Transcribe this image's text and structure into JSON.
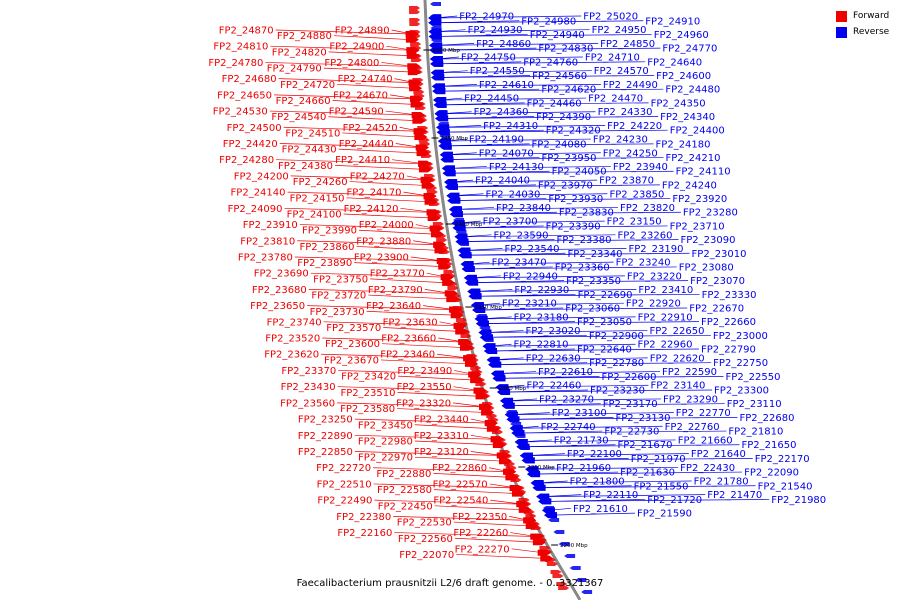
{
  "legend": {
    "forward": {
      "label": "Forward",
      "color": "#ee0000"
    },
    "reverse": {
      "label": "Reverse",
      "color": "#0000ee"
    }
  },
  "caption": "Faecalibacterium prausnitzii L2/6 draft genome. - 0..3321367",
  "scale_labels": [
    "2500 Mbp",
    "2450 Mbp",
    "2400 Mbp",
    "2350 Mbp",
    "2300 Mbp",
    "2250 Mbp",
    "2200 Mbp"
  ],
  "forward_genes": [
    "FP2_24890",
    "FP2_24880",
    "FP2_24870",
    "FP2_24900",
    "FP2_24820",
    "FP2_24810",
    "FP2_24800",
    "FP2_24790",
    "FP2_24780",
    "FP2_24740",
    "FP2_24720",
    "FP2_24680",
    "FP2_24670",
    "FP2_24660",
    "FP2_24650",
    "FP2_24590",
    "FP2_24540",
    "FP2_24530",
    "FP2_24520",
    "FP2_24510",
    "FP2_24500",
    "FP2_24440",
    "FP2_24430",
    "FP2_24420",
    "FP2_24410",
    "FP2_24380",
    "FP2_24280",
    "FP2_24270",
    "FP2_24260",
    "FP2_24200",
    "FP2_24170",
    "FP2_24150",
    "FP2_24140",
    "FP2_24120",
    "FP2_24100",
    "FP2_24090",
    "FP2_24000",
    "FP2_23990",
    "FP2_23910",
    "FP2_23880",
    "FP2_23860",
    "FP2_23810",
    "FP2_23900",
    "FP2_23890",
    "FP2_23780",
    "FP2_23770",
    "FP2_23750",
    "FP2_23690",
    "FP2_23790",
    "FP2_23720",
    "FP2_23680",
    "FP2_23640",
    "FP2_23730",
    "FP2_23650",
    "FP2_23630",
    "FP2_23570",
    "FP2_23740",
    "FP2_23660",
    "FP2_23600",
    "FP2_23520",
    "FP2_23460",
    "FP2_23670",
    "FP2_23620",
    "FP2_23490",
    "FP2_23420",
    "FP2_23370",
    "FP2_23550",
    "FP2_23510",
    "FP2_23430",
    "FP2_23320",
    "FP2_23580",
    "FP2_23560",
    "FP2_23440",
    "FP2_23450",
    "FP2_23250",
    "FP2_23310",
    "FP2_22980",
    "FP2_22890",
    "FP2_23120",
    "FP2_22970",
    "FP2_22850",
    "FP2_22860",
    "FP2_22880",
    "FP2_22720",
    "FP2_22570",
    "FP2_22580",
    "FP2_22510",
    "FP2_22540",
    "FP2_22450",
    "FP2_22490",
    "FP2_22350",
    "FP2_22530",
    "FP2_22380",
    "FP2_22260",
    "FP2_22560",
    "FP2_22160",
    "FP2_22270",
    "FP2_22070"
  ],
  "reverse_genes": [
    "FP2_24970",
    "FP2_24980",
    "FP2_25020",
    "FP2_24910",
    "FP2_24930",
    "FP2_24940",
    "FP2_24950",
    "FP2_24960",
    "FP2_24860",
    "FP2_24830",
    "FP2_24850",
    "FP2_24770",
    "FP2_24750",
    "FP2_24760",
    "FP2_24710",
    "FP2_24640",
    "FP2_24550",
    "FP2_24560",
    "FP2_24570",
    "FP2_24600",
    "FP2_24610",
    "FP2_24620",
    "FP2_24490",
    "FP2_24480",
    "FP2_24450",
    "FP2_24460",
    "FP2_24470",
    "FP2_24350",
    "FP2_24360",
    "FP2_24390",
    "FP2_24330",
    "FP2_24340",
    "FP2_24310",
    "FP2_24320",
    "FP2_24220",
    "FP2_24400",
    "FP2_24190",
    "FP2_24080",
    "FP2_24230",
    "FP2_24180",
    "FP2_24070",
    "FP2_23950",
    "FP2_24250",
    "FP2_24210",
    "FP2_24130",
    "FP2_24050",
    "FP2_23940",
    "FP2_24110",
    "FP2_24040",
    "FP2_23970",
    "FP2_23870",
    "FP2_24240",
    "FP2_24030",
    "FP2_23930",
    "FP2_23850",
    "FP2_23920",
    "FP2_23840",
    "FP2_23830",
    "FP2_23820",
    "FP2_23280",
    "FP2_23700",
    "FP2_23390",
    "FP2_23150",
    "FP2_23710",
    "FP2_23590",
    "FP2_23380",
    "FP2_23260",
    "FP2_23090",
    "FP2_23540",
    "FP2_23340",
    "FP2_23190",
    "FP2_23010",
    "FP2_23470",
    "FP2_23360",
    "FP2_23240",
    "FP2_23080",
    "FP2_22940",
    "FP2_23350",
    "FP2_23220",
    "FP2_23070",
    "FP2_22930",
    "FP2_22690",
    "FP2_23410",
    "FP2_23330",
    "FP2_23210",
    "FP2_23060",
    "FP2_22920",
    "FP2_22670",
    "FP2_23180",
    "FP2_23050",
    "FP2_22910",
    "FP2_22660",
    "FP2_23020",
    "FP2_22900",
    "FP2_22650",
    "FP2_23000",
    "FP2_22810",
    "FP2_22640",
    "FP2_22960",
    "FP2_22790",
    "FP2_22630",
    "FP2_22780",
    "FP2_22620",
    "FP2_22750",
    "FP2_22610",
    "FP2_22600",
    "FP2_22590",
    "FP2_22550",
    "FP2_22460",
    "FP2_23230",
    "FP2_23140",
    "FP2_23300",
    "FP2_23270",
    "FP2_23170",
    "FP2_23290",
    "FP2_23110",
    "FP2_23100",
    "FP2_23130",
    "FP2_22770",
    "FP2_22680",
    "FP2_22740",
    "FP2_22730",
    "FP2_22760",
    "FP2_21810",
    "FP2_21730",
    "FP2_21670",
    "FP2_21660",
    "FP2_21650",
    "FP2_22100",
    "FP2_21970",
    "FP2_21640",
    "FP2_22170",
    "FP2_21960",
    "FP2_21630",
    "FP2_22430",
    "FP2_22090",
    "FP2_21800",
    "FP2_21550",
    "FP2_21780",
    "FP2_21540",
    "FP2_22110",
    "FP2_21720",
    "FP2_21470",
    "FP2_21980",
    "FP2_21610",
    "FP2_21590"
  ]
}
